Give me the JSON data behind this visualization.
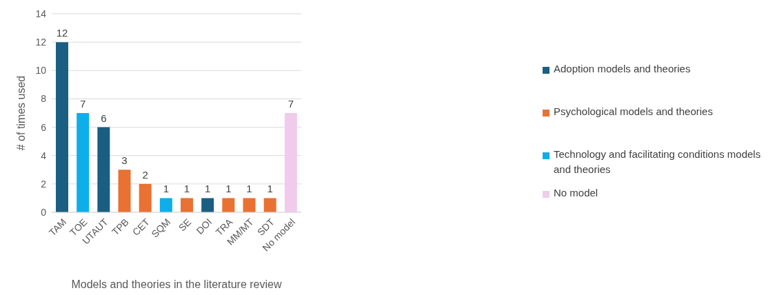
{
  "chart_data": {
    "type": "bar",
    "stacked": true,
    "xlabel": "Models and theories in the literature review",
    "ylabel": "# of times used",
    "categories": [
      "TAM",
      "TOE",
      "UTAUT",
      "TPB",
      "CET",
      "SQM",
      "SE",
      "DOI",
      "TRA",
      "MM/MT",
      "SDT",
      "No model"
    ],
    "series": [
      {
        "name": "Adoption models and theories",
        "color": "#1a5e82",
        "values": [
          12,
          null,
          6,
          null,
          null,
          null,
          null,
          1,
          null,
          null,
          null,
          null
        ]
      },
      {
        "name": "Psychological models and theories",
        "color": "#e97132",
        "values": [
          null,
          null,
          null,
          3,
          2,
          null,
          1,
          null,
          1,
          1,
          1,
          null
        ]
      },
      {
        "name": "Technology and facilitating conditions models and theories",
        "color": "#0eaeea",
        "values": [
          null,
          7,
          null,
          null,
          null,
          1,
          null,
          null,
          null,
          null,
          null,
          null
        ]
      },
      {
        "name": "No model",
        "color": "#f1cbeb",
        "values": [
          null,
          null,
          null,
          null,
          null,
          null,
          null,
          null,
          null,
          null,
          null,
          7
        ]
      }
    ],
    "ylim": [
      0,
      14
    ],
    "yticks": [
      0,
      2,
      4,
      6,
      8,
      10,
      12,
      14
    ],
    "grid": "y",
    "legend": "right",
    "data_labels": true
  }
}
